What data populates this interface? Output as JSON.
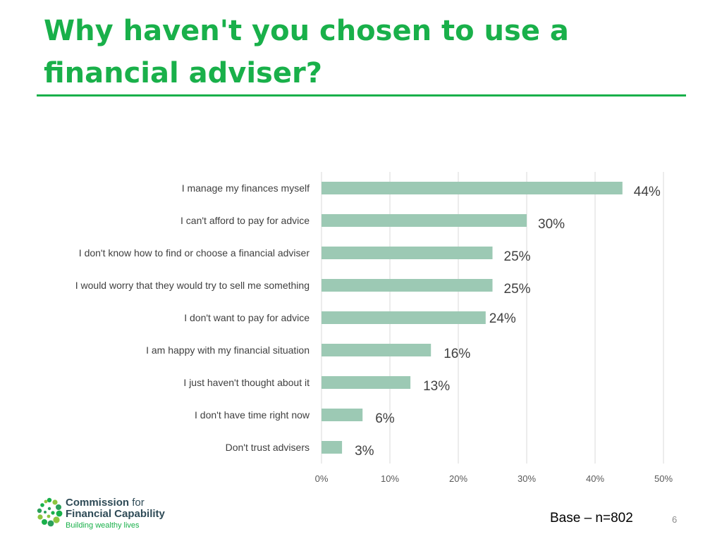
{
  "title": "Why haven't you chosen to use a financial adviser?",
  "footer": {
    "base_note": "Base – n=802",
    "page_number": "6",
    "logo": {
      "line1_bold": "Commission",
      "line1_light": "for",
      "line2": "Financial Capability",
      "tagline": "Building wealthy lives"
    }
  },
  "colors": {
    "title": "#19b04a",
    "bar": "#9cc9b4",
    "grid": "#d9d9d9",
    "label": "#404040",
    "value_label": "#404040",
    "logo_dots": [
      "#19b04a",
      "#8dc63f",
      "#2aa05a"
    ]
  },
  "chart_data": {
    "type": "bar",
    "orientation": "horizontal",
    "title": "",
    "xlabel": "",
    "ylabel": "",
    "categories": [
      "I manage my finances myself",
      "I can't afford to pay for advice",
      "I don't know how to find or choose a financial adviser",
      "I would worry that they would try to sell me something",
      "I don't want to pay for advice",
      "I am happy with my financial situation",
      "I just haven't thought about it",
      "I don't have time right now",
      "Don't trust advisers"
    ],
    "values": [
      44,
      30,
      25,
      25,
      24,
      16,
      13,
      6,
      3
    ],
    "value_labels": [
      "44%",
      "30%",
      "25%",
      "25%",
      "24%",
      "16%",
      "13%",
      "6%",
      "3%"
    ],
    "xlim": [
      0,
      50
    ],
    "x_ticks": [
      0,
      10,
      20,
      30,
      40,
      50
    ],
    "x_tick_labels": [
      "0%",
      "10%",
      "20%",
      "30%",
      "40%",
      "50%"
    ],
    "grid": true,
    "legend": "none"
  }
}
